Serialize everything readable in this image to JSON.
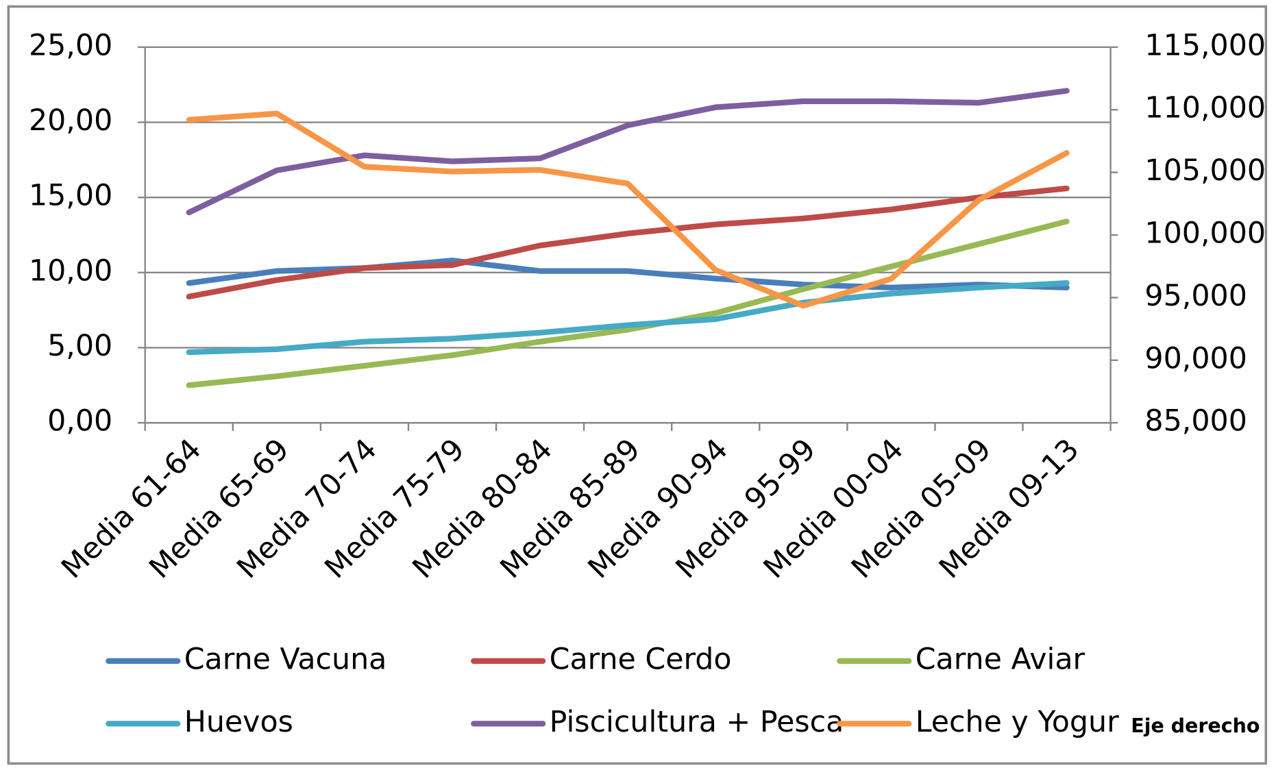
{
  "chart_data": {
    "type": "line",
    "categories": [
      "Media 61-64",
      "Media 65-69",
      "Media 70-74",
      "Media 75-79",
      "Media 80-84",
      "Media 85-89",
      "Media 90-94",
      "Media 95-99",
      "Media 00-04",
      "Media 05-09",
      "Media 09-13"
    ],
    "series": [
      {
        "name": "Carne Vacuna",
        "color": "#4a7ebb",
        "values": [
          9.3,
          10.1,
          10.3,
          10.8,
          10.1,
          10.1,
          9.6,
          9.2,
          9.0,
          9.2,
          9.0
        ]
      },
      {
        "name": "Carne Cerdo",
        "color": "#be4b48",
        "values": [
          8.4,
          9.5,
          10.3,
          10.5,
          11.8,
          12.6,
          13.2,
          13.6,
          14.2,
          15.0,
          15.6
        ]
      },
      {
        "name": "Carne Aviar",
        "color": "#98b954",
        "values": [
          2.5,
          3.1,
          3.8,
          4.5,
          5.4,
          6.2,
          7.3,
          8.9,
          10.4,
          11.9,
          13.4
        ]
      },
      {
        "name": "Huevos",
        "color": "#46aac5",
        "values": [
          4.7,
          4.9,
          5.4,
          5.6,
          6.0,
          6.5,
          6.9,
          8.0,
          8.6,
          9.0,
          9.3
        ]
      },
      {
        "name": "Piscicultura + Pesca",
        "color": "#7d5fa0",
        "values": [
          14.0,
          16.8,
          17.8,
          17.4,
          17.6,
          19.8,
          21.0,
          21.4,
          21.4,
          21.3,
          22.1
        ]
      },
      {
        "name": "Leche y Yogur",
        "color": "#f79646",
        "axis": "y2",
        "values": [
          109200,
          109700,
          105450,
          105070,
          105200,
          104100,
          97200,
          94350,
          96500,
          102800,
          106550
        ]
      }
    ],
    "ylim": [
      0,
      25
    ],
    "yticks": [
      {
        "value": 0,
        "label": "0,00"
      },
      {
        "value": 5,
        "label": "5,00"
      },
      {
        "value": 10,
        "label": "10,00"
      },
      {
        "value": 15,
        "label": "15,00"
      },
      {
        "value": 20,
        "label": "20,00"
      },
      {
        "value": 25,
        "label": "25,00"
      }
    ],
    "y2lim": [
      85000,
      115000
    ],
    "y2ticks": [
      {
        "value": 85000,
        "label": "85,000"
      },
      {
        "value": 90000,
        "label": "90,000"
      },
      {
        "value": 95000,
        "label": "95,000"
      },
      {
        "value": 100000,
        "label": "100,000"
      },
      {
        "value": 105000,
        "label": "105,000"
      },
      {
        "value": 110000,
        "label": "110,000"
      },
      {
        "value": 115000,
        "label": "115,000"
      }
    ],
    "grid": true,
    "legend": "bottom",
    "annotation": "Eje derecho"
  }
}
